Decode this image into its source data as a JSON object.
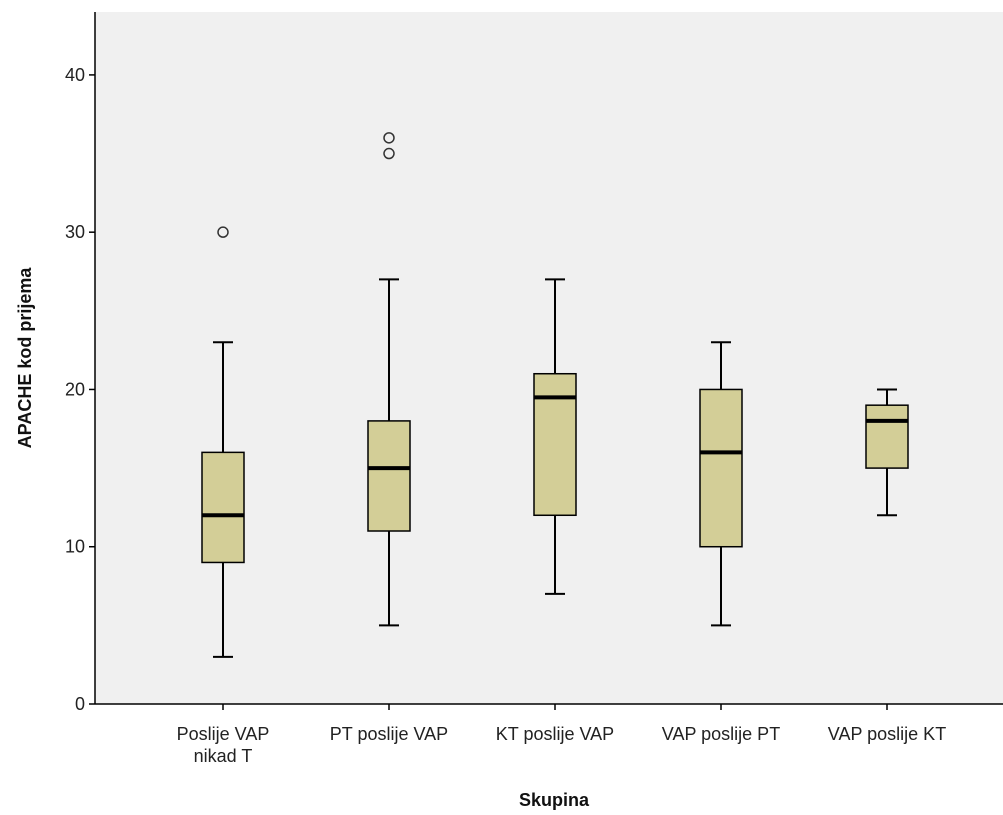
{
  "chart_data": {
    "type": "boxplot",
    "xlabel": "Skupina",
    "ylabel": "APACHE kod prijema",
    "ylim": [
      0,
      44
    ],
    "yticks": [
      0,
      10,
      20,
      30,
      40
    ],
    "grid": false,
    "colors": {
      "plot_background": "#f0f0f0",
      "box_fill": "#d3ce97",
      "stroke": "#000000"
    },
    "categories": [
      [
        "Poslije VAP",
        "nikad T"
      ],
      [
        "PT poslije VAP"
      ],
      [
        "KT poslije VAP"
      ],
      [
        "VAP poslije PT"
      ],
      [
        "VAP poslije KT"
      ]
    ],
    "boxes": [
      {
        "whisker_low": 3,
        "q1": 9,
        "median": 12,
        "q3": 16,
        "whisker_high": 23,
        "outliers": [
          30
        ]
      },
      {
        "whisker_low": 5,
        "q1": 11,
        "median": 15,
        "q3": 18,
        "whisker_high": 27,
        "outliers": [
          35,
          36
        ]
      },
      {
        "whisker_low": 7,
        "q1": 12,
        "median": 19.5,
        "q3": 21,
        "whisker_high": 27,
        "outliers": []
      },
      {
        "whisker_low": 5,
        "q1": 10,
        "median": 16,
        "q3": 20,
        "whisker_high": 23,
        "outliers": []
      },
      {
        "whisker_low": 12,
        "q1": 15,
        "median": 18,
        "q3": 19,
        "whisker_high": 20,
        "outliers": []
      }
    ]
  }
}
